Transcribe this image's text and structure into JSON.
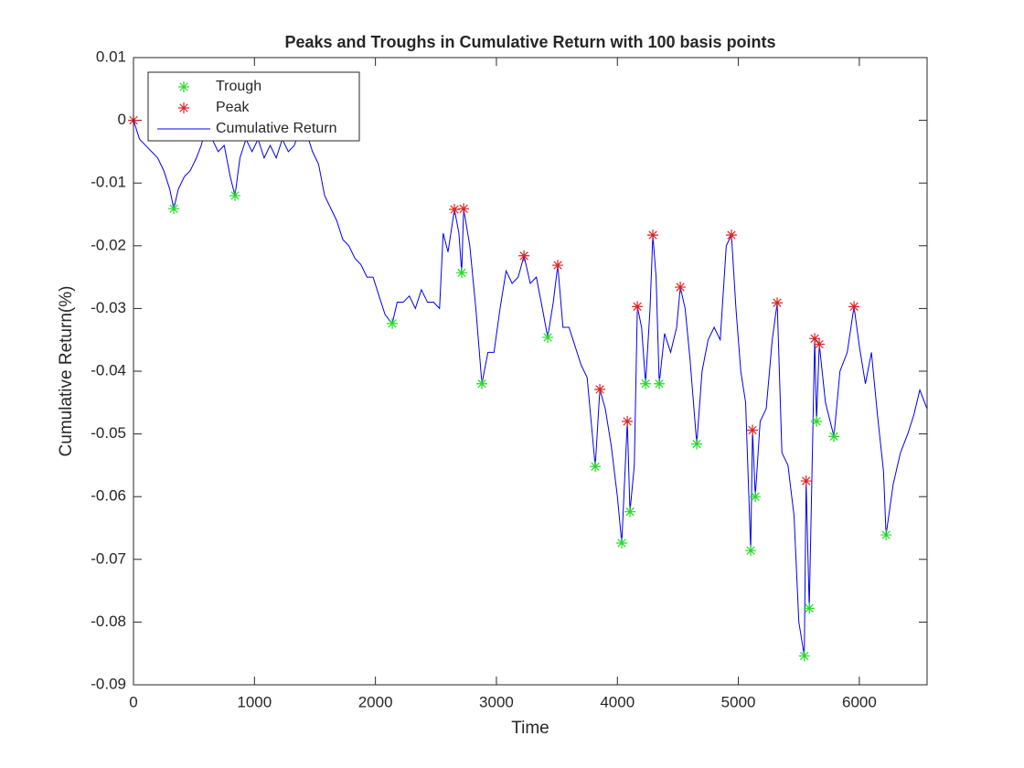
{
  "chart_data": {
    "type": "line",
    "title": "Peaks and Troughs in Cumulative Return with 100 basis points",
    "x_label": "Time",
    "y_label": "Cumulative Return(%)",
    "xlim": [
      0,
      6560
    ],
    "ylim": [
      -0.09,
      0.01
    ],
    "xticks": [
      0,
      1000,
      2000,
      3000,
      4000,
      5000,
      6000
    ],
    "yticks": [
      0.01,
      0,
      -0.01,
      -0.02,
      -0.03,
      -0.04,
      -0.05,
      -0.06,
      -0.07,
      -0.08,
      -0.09
    ],
    "grid": false,
    "legend_position": "upper-left",
    "series": [
      {
        "name": "Trough",
        "color": "#22dd22",
        "marker": "*",
        "x": [
          333,
          839,
          2139,
          2713,
          2880,
          3424,
          3817,
          4036,
          4104,
          4233,
          4346,
          4656,
          5102,
          5140,
          5545,
          5586,
          5646,
          5790,
          6221
        ],
        "values": [
          -0.0141,
          -0.012,
          -0.0324,
          -0.0243,
          -0.042,
          -0.0346,
          -0.0552,
          -0.0674,
          -0.0624,
          -0.042,
          -0.042,
          -0.0516,
          -0.0686,
          -0.06,
          -0.0854,
          -0.0778,
          -0.048,
          -0.0504,
          -0.0661
        ]
      },
      {
        "name": "Peak",
        "color": "#dd2222",
        "marker": "*",
        "x": [
          0,
          2653,
          2729,
          3228,
          3507,
          3855,
          4082,
          4165,
          4293,
          4520,
          4943,
          5117,
          5321,
          5560,
          5631,
          5669,
          5956
        ],
        "values": [
          0,
          -0.0142,
          -0.0141,
          -0.0216,
          -0.0231,
          -0.0429,
          -0.048,
          -0.0297,
          -0.0183,
          -0.0266,
          -0.0183,
          -0.0494,
          -0.0291,
          -0.0575,
          -0.0348,
          -0.0357,
          -0.0297
        ]
      },
      {
        "name": "Cumulative Return",
        "color": "#0000ee",
        "marker": "line",
        "x": [
          0,
          50,
          100,
          150,
          200,
          250,
          300,
          333,
          370,
          420,
          470,
          520,
          560,
          600,
          650,
          700,
          750,
          800,
          839,
          880,
          930,
          980,
          1030,
          1080,
          1130,
          1180,
          1230,
          1280,
          1330,
          1380,
          1430,
          1480,
          1530,
          1580,
          1630,
          1680,
          1730,
          1780,
          1830,
          1880,
          1930,
          1980,
          2030,
          2080,
          2139,
          2180,
          2230,
          2280,
          2330,
          2380,
          2430,
          2480,
          2530,
          2560,
          2600,
          2653,
          2690,
          2713,
          2729,
          2780,
          2830,
          2880,
          2930,
          2980,
          3030,
          3080,
          3130,
          3180,
          3228,
          3280,
          3330,
          3380,
          3424,
          3470,
          3507,
          3550,
          3600,
          3650,
          3700,
          3750,
          3817,
          3855,
          3900,
          3950,
          4000,
          4036,
          4082,
          4104,
          4140,
          4165,
          4200,
          4233,
          4270,
          4293,
          4320,
          4346,
          4390,
          4440,
          4490,
          4520,
          4560,
          4600,
          4656,
          4700,
          4750,
          4800,
          4850,
          4900,
          4943,
          4980,
          5020,
          5060,
          5102,
          5117,
          5140,
          5180,
          5230,
          5280,
          5321,
          5360,
          5410,
          5460,
          5500,
          5545,
          5560,
          5586,
          5631,
          5646,
          5669,
          5720,
          5790,
          5840,
          5900,
          5956,
          6000,
          6050,
          6100,
          6150,
          6200,
          6221,
          6280,
          6340,
          6400,
          6450,
          6500,
          6540,
          6560
        ],
        "values": [
          0,
          -0.003,
          -0.004,
          -0.005,
          -0.006,
          -0.008,
          -0.011,
          -0.0141,
          -0.011,
          -0.009,
          -0.008,
          -0.006,
          -0.004,
          -0.001,
          -0.003,
          -0.005,
          -0.004,
          -0.009,
          -0.012,
          -0.006,
          -0.003,
          -0.005,
          -0.003,
          -0.006,
          -0.004,
          -0.006,
          -0.003,
          -0.005,
          -0.004,
          -0.001,
          -0.002,
          -0.005,
          -0.007,
          -0.012,
          -0.014,
          -0.016,
          -0.019,
          -0.02,
          -0.022,
          -0.023,
          -0.025,
          -0.025,
          -0.028,
          -0.031,
          -0.0324,
          -0.029,
          -0.029,
          -0.028,
          -0.03,
          -0.027,
          -0.029,
          -0.029,
          -0.03,
          -0.018,
          -0.021,
          -0.0142,
          -0.018,
          -0.0243,
          -0.0141,
          -0.02,
          -0.03,
          -0.042,
          -0.037,
          -0.037,
          -0.03,
          -0.024,
          -0.026,
          -0.025,
          -0.0216,
          -0.026,
          -0.025,
          -0.03,
          -0.0346,
          -0.029,
          -0.0231,
          -0.033,
          -0.033,
          -0.036,
          -0.039,
          -0.041,
          -0.0552,
          -0.0429,
          -0.046,
          -0.052,
          -0.06,
          -0.0674,
          -0.048,
          -0.0624,
          -0.055,
          -0.0297,
          -0.033,
          -0.042,
          -0.03,
          -0.0183,
          -0.025,
          -0.042,
          -0.034,
          -0.037,
          -0.033,
          -0.0266,
          -0.03,
          -0.038,
          -0.0516,
          -0.04,
          -0.035,
          -0.033,
          -0.035,
          -0.02,
          -0.0183,
          -0.03,
          -0.04,
          -0.045,
          -0.0686,
          -0.0494,
          -0.06,
          -0.048,
          -0.046,
          -0.035,
          -0.0291,
          -0.053,
          -0.055,
          -0.063,
          -0.08,
          -0.0854,
          -0.0575,
          -0.0778,
          -0.0348,
          -0.048,
          -0.0357,
          -0.045,
          -0.0504,
          -0.04,
          -0.037,
          -0.0297,
          -0.036,
          -0.042,
          -0.037,
          -0.047,
          -0.056,
          -0.0661,
          -0.058,
          -0.053,
          -0.05,
          -0.047,
          -0.043,
          -0.045,
          -0.046
        ]
      }
    ]
  }
}
